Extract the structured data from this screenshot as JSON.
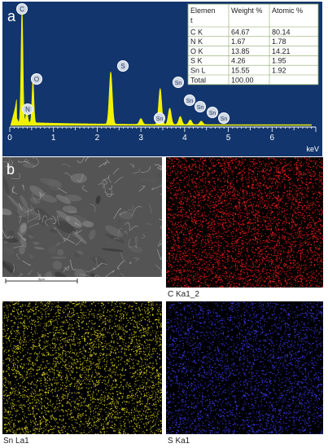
{
  "panel_a": {
    "label": "a",
    "chart_data": {
      "type": "line",
      "xlabel": "keV",
      "xlim": [
        0,
        7
      ],
      "x_ticks": [
        "0",
        "1",
        "2",
        "3",
        "4",
        "5",
        "6"
      ],
      "colors": {
        "background": "#12356e",
        "spectrum": "#f2f200",
        "axis": "#ffffff"
      },
      "peaks": [
        {
          "label": "C",
          "x": 0.28,
          "y": 100
        },
        {
          "label": "N",
          "x": 0.39,
          "y": 10
        },
        {
          "label": "O",
          "x": 0.53,
          "y": 37
        },
        {
          "label": "S",
          "x": 2.31,
          "y": 45
        },
        {
          "label": "Sn",
          "x": 3.0,
          "y": 5
        },
        {
          "label": "Sn",
          "x": 3.44,
          "y": 31
        },
        {
          "label": "Sn",
          "x": 3.66,
          "y": 14
        },
        {
          "label": "Sn",
          "x": 3.9,
          "y": 7
        },
        {
          "label": "Sn",
          "x": 4.13,
          "y": 4
        },
        {
          "label": "Sn",
          "x": 4.38,
          "y": 3
        }
      ],
      "table": {
        "headers": [
          "Element",
          "Weight %",
          "Atomic %"
        ],
        "header_first_lines": [
          "Elemen",
          "Weight %",
          "Atomic %"
        ],
        "header_second_line": "t",
        "rows": [
          [
            "C K",
            "64.67",
            "80.14"
          ],
          [
            "N K",
            "1.67",
            "1.78"
          ],
          [
            "O K",
            "13.85",
            "14.21"
          ],
          [
            "S K",
            "4.26",
            "1.95"
          ],
          [
            "Sn L",
            "15.55",
            "1.92"
          ],
          [
            "Total",
            "100.00",
            ""
          ]
        ]
      }
    }
  },
  "panel_b": {
    "label": "b",
    "sem_image": {
      "scale_bar_label": "5μm"
    },
    "maps": [
      {
        "caption": "C Ka1_2",
        "color": "#ff2020"
      },
      {
        "caption": "Sn La1",
        "color": "#e8e020"
      },
      {
        "caption": "S Ka1",
        "color": "#4040ff"
      }
    ]
  }
}
